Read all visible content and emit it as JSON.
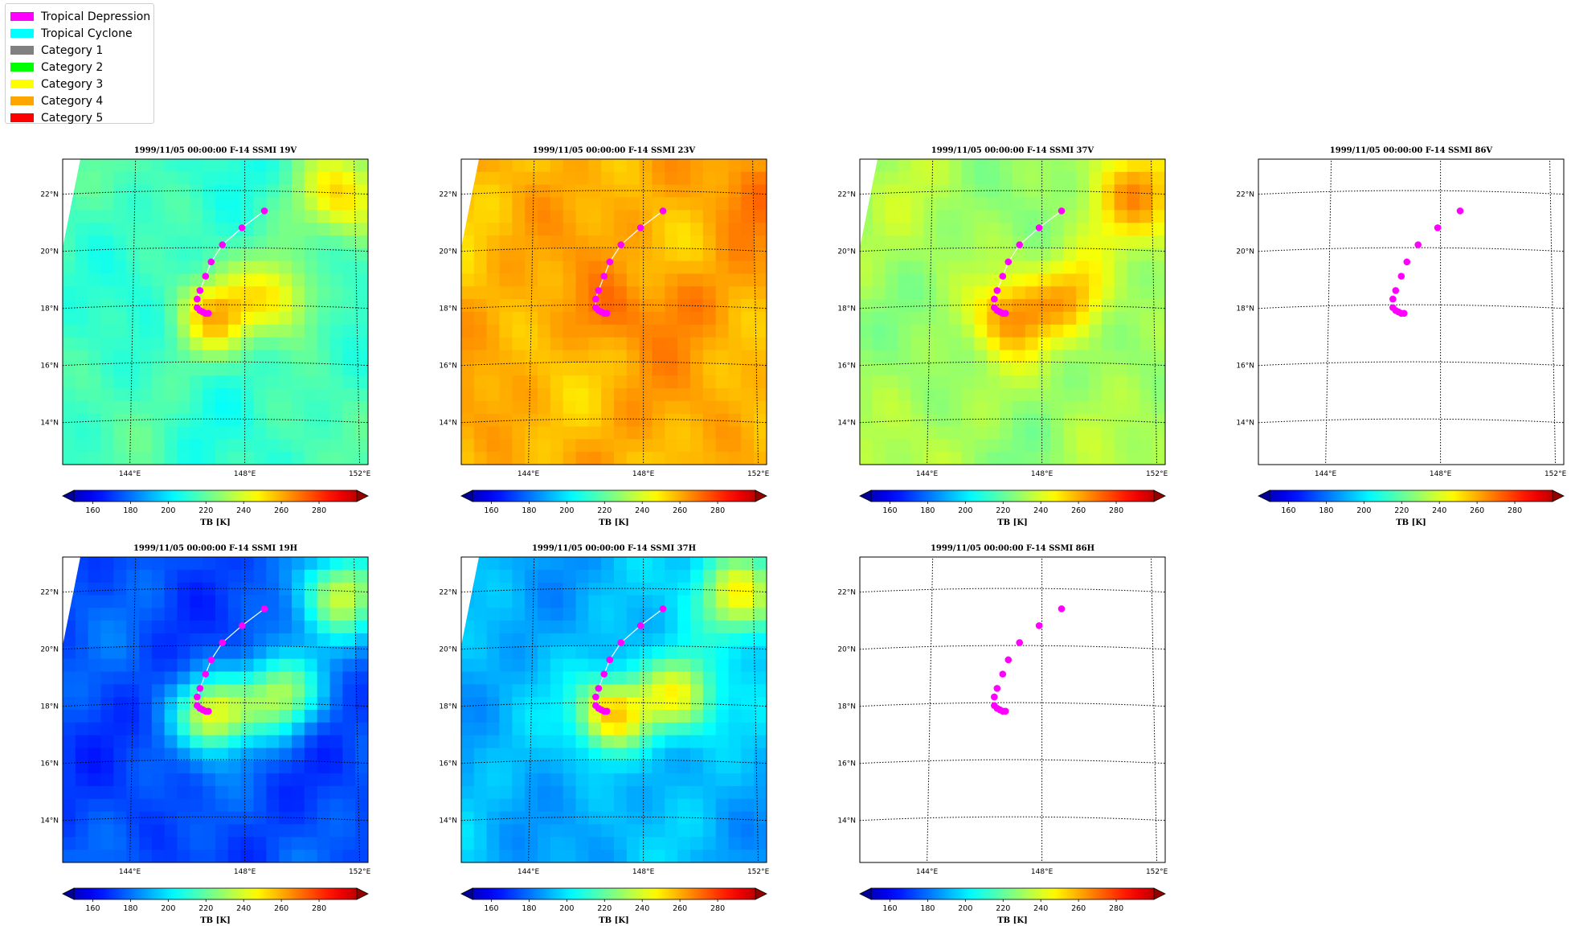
{
  "legend": {
    "entries": [
      {
        "label": "Tropical Depression",
        "color": "#ff00ff"
      },
      {
        "label": "Tropical Cyclone",
        "color": "#00ffff"
      },
      {
        "label": "Category 1",
        "color": "#808080"
      },
      {
        "label": "Category 2",
        "color": "#00ff00"
      },
      {
        "label": "Category 3",
        "color": "#ffff00"
      },
      {
        "label": "Category 4",
        "color": "#ffa500"
      },
      {
        "label": "Category 5",
        "color": "#ff0000"
      }
    ]
  },
  "chart_data": {
    "type": "heatmap",
    "colormap": "jet",
    "colorbar": {
      "label": "TB [K]",
      "ticks": [
        "160",
        "180",
        "200",
        "220",
        "240",
        "260",
        "280"
      ],
      "range": [
        150,
        300
      ],
      "extend": "both"
    },
    "lat_ticks": [
      "22°N",
      "20°N",
      "18°N",
      "16°N",
      "14°N"
    ],
    "lon_ticks": [
      "144°E",
      "148°E",
      "152°E"
    ],
    "track": {
      "category": "Tropical Depression",
      "color": "#ff00ff",
      "points": [
        {
          "lon": 148.7,
          "lat": 21.3
        },
        {
          "lon": 147.9,
          "lat": 20.7
        },
        {
          "lon": 147.2,
          "lat": 20.1
        },
        {
          "lon": 146.8,
          "lat": 19.5
        },
        {
          "lon": 146.6,
          "lat": 19.0
        },
        {
          "lon": 146.4,
          "lat": 18.5
        },
        {
          "lon": 146.3,
          "lat": 18.2
        },
        {
          "lon": 146.3,
          "lat": 17.9
        },
        {
          "lon": 146.4,
          "lat": 17.8
        },
        {
          "lon": 146.5,
          "lat": 17.75
        },
        {
          "lon": 146.6,
          "lat": 17.7
        },
        {
          "lon": 146.7,
          "lat": 17.7
        }
      ]
    },
    "panels": [
      {
        "title": "1999/11/05 00:00:00  F-14 SSMI 19V",
        "mean_tb": 215,
        "storm_tb": 250,
        "has_data": true
      },
      {
        "title": "1999/11/05 00:00:00  F-14 SSMI 23V",
        "mean_tb": 255,
        "storm_tb": 264,
        "has_data": true
      },
      {
        "title": "1999/11/05 00:00:00  F-14 SSMI 37V",
        "mean_tb": 230,
        "storm_tb": 258,
        "has_data": true
      },
      {
        "title": "1999/11/05 00:00:00  F-14 SSMI 86V",
        "has_data": false
      },
      {
        "title": "1999/11/05 00:00:00  F-14 SSMI 19H",
        "mean_tb": 180,
        "storm_tb": 240,
        "has_data": true
      },
      {
        "title": "1999/11/05 00:00:00  F-14 SSMI 37H",
        "mean_tb": 195,
        "storm_tb": 252,
        "has_data": true
      },
      {
        "title": "1999/11/05 00:00:00  F-14 SSMI 86H",
        "has_data": false
      }
    ]
  }
}
